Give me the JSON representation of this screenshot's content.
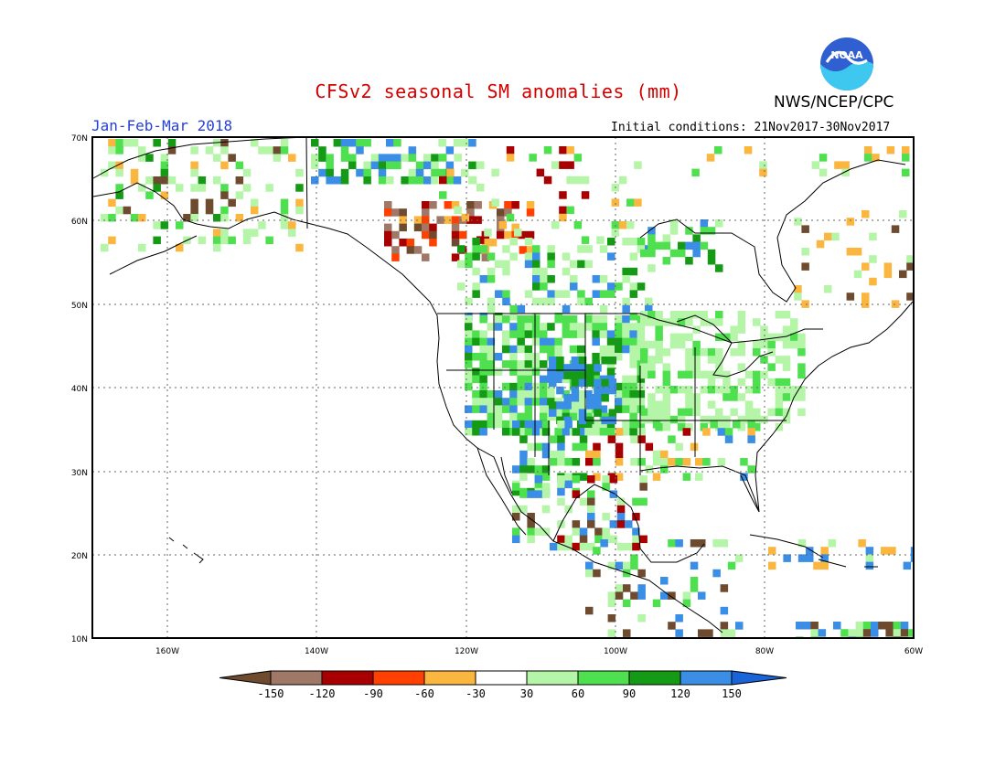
{
  "header": {
    "title": "CFSv2 seasonal SM anomalies (mm)",
    "organization": "NWS/NCEP/CPC",
    "period": "Jan-Feb-Mar 2018",
    "initial_conditions": "Initial conditions: 21Nov2017-30Nov2017"
  },
  "logo": {
    "text": "NOAA",
    "icon": "noaa-logo"
  },
  "map": {
    "lat_labels": [
      "70N",
      "60N",
      "50N",
      "40N",
      "30N",
      "20N",
      "10N"
    ],
    "lon_labels": [
      "160W",
      "140W",
      "120W",
      "100W",
      "80W",
      "60W"
    ],
    "lat_range": [
      10,
      70
    ],
    "lon_range": [
      -170,
      -60
    ],
    "gridlines": "dotted"
  },
  "colorbar": {
    "labels": [
      "-150",
      "-120",
      "-90",
      "-60",
      "-30",
      "30",
      "60",
      "90",
      "120",
      "150"
    ],
    "colors": [
      "#6e4a2e",
      "#a07868",
      "#a80000",
      "#ff4000",
      "#fbb63f",
      "#ffffff",
      "#b5f5a8",
      "#4fe04f",
      "#149a14",
      "#3a8ee6",
      "#1864d8"
    ]
  }
}
